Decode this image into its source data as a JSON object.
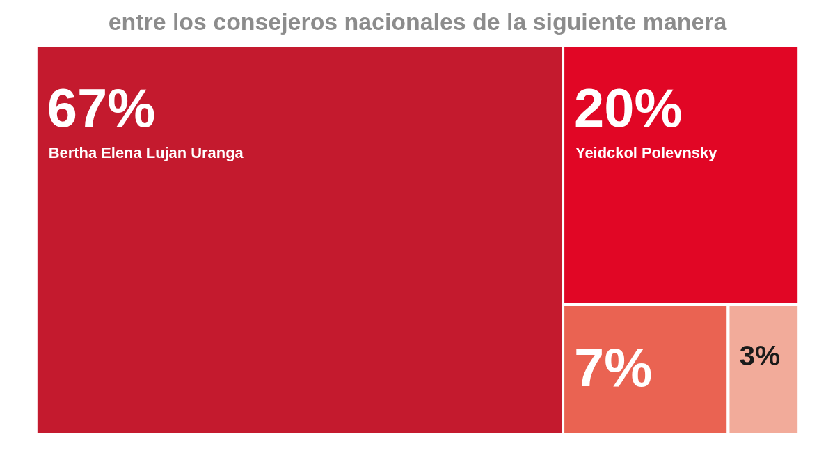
{
  "chart_data": {
    "type": "other",
    "title": "entre los consejeros nacionales de la siguiente manera",
    "categories": [
      "Bertha Elena Lujan Uranga",
      "Yeidckol Polevnsky",
      null,
      null
    ],
    "values": [
      67,
      20,
      7,
      3
    ],
    "value_labels": [
      "67%",
      "20%",
      "7%",
      "3%"
    ],
    "colors": [
      "#c41a2e",
      "#e10625",
      "#ea6352",
      "#f2ab9a"
    ]
  }
}
